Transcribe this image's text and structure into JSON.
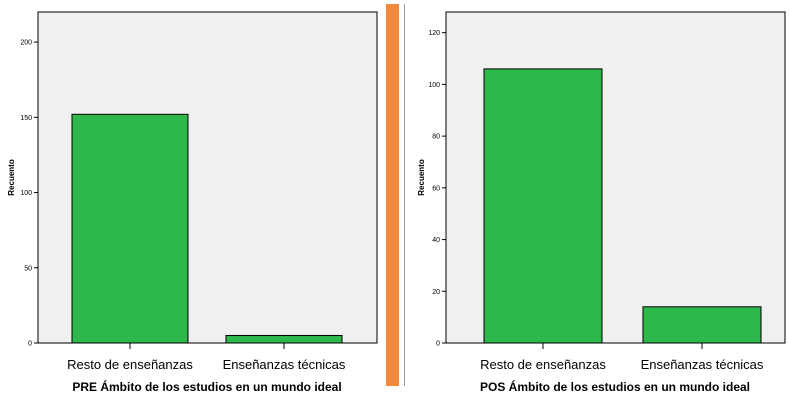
{
  "accent_color": "#f5883a",
  "chart_data": [
    {
      "type": "bar",
      "categories": [
        "Resto de enseñanzas",
        "Enseñanzas técnicas"
      ],
      "values": [
        152,
        5
      ],
      "xlabel": "PRE Ámbito de los estudios en un mundo ideal",
      "ylabel": "Recuento",
      "ylim": [
        0,
        220
      ],
      "yticks": [
        0,
        50,
        100,
        150,
        200
      ],
      "yticklabels": [
        "0",
        "50",
        "100",
        "150",
        "200"
      ],
      "bar_color": "#2eb84c",
      "plot_background": "#f0f0f0",
      "grid": false
    },
    {
      "type": "bar",
      "categories": [
        "Resto de enseñanzas",
        "Enseñanzas técnicas"
      ],
      "values": [
        106,
        14
      ],
      "xlabel": "POS Ámbito de los estudios en un mundo ideal",
      "ylabel": "Recuento",
      "ylim": [
        0,
        128
      ],
      "yticks": [
        0,
        20,
        40,
        60,
        80,
        100,
        120
      ],
      "yticklabels": [
        "0",
        "20",
        "40",
        "60",
        "80",
        "100",
        "120"
      ],
      "bar_color": "#2eb84c",
      "plot_background": "#f0f0f0",
      "grid": false
    }
  ]
}
